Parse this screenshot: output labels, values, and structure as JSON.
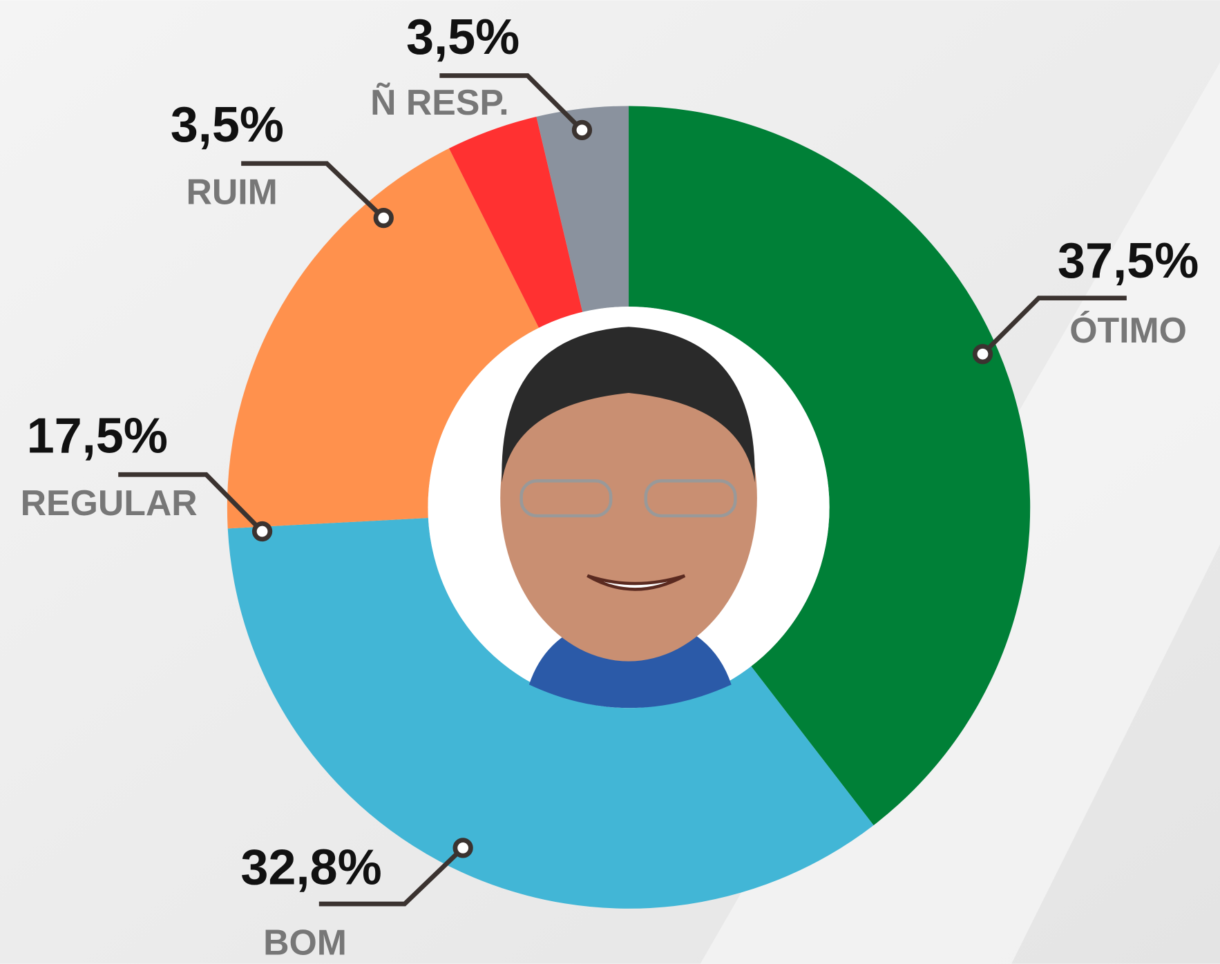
{
  "chart_data": {
    "type": "donut",
    "categories": [
      "ÓTIMO",
      "BOM",
      "REGULAR",
      "RUIM",
      "Ñ RESP."
    ],
    "values": [
      37.5,
      32.8,
      17.5,
      3.5,
      3.5
    ],
    "value_labels": [
      "37,5%",
      "32,8%",
      "17,5%",
      "3,5%",
      "3,5%"
    ],
    "colors": [
      "#008037",
      "#42b6d6",
      "#ff914d",
      "#ff3131",
      "#8a929e"
    ]
  }
}
